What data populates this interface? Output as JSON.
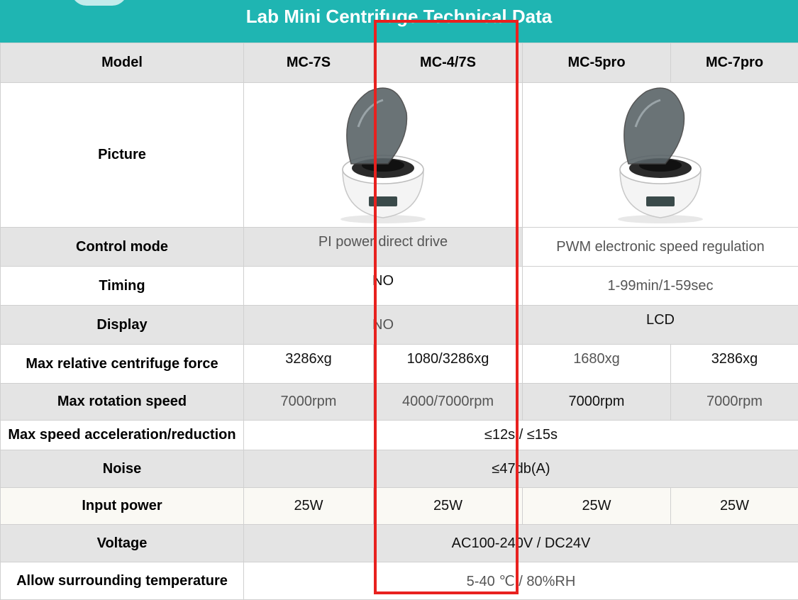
{
  "title": "Lab Mini Centrifuge Technical Data",
  "columns": {
    "model_label": "Model",
    "models": [
      "MC-7S",
      "MC-4/7S",
      "MC-5pro",
      "MC-7pro"
    ]
  },
  "rows": {
    "picture": {
      "label": "Picture"
    },
    "control_mode": {
      "label": "Control mode",
      "group1": "PI power direct drive",
      "group2": "PWM electronic speed regulation"
    },
    "timing": {
      "label": "Timing",
      "group1": "NO",
      "group2": "1-99min/1-59sec"
    },
    "display": {
      "label": "Display",
      "group1": "NO",
      "group2": "LCD"
    },
    "max_rcf": {
      "label": "Max relative centrifuge force",
      "values": [
        "3286xg",
        "1080/3286xg",
        "1680xg",
        "3286xg"
      ]
    },
    "max_speed": {
      "label": "Max rotation speed",
      "values": [
        "7000rpm",
        "4000/7000rpm",
        "7000rpm",
        "7000rpm"
      ]
    },
    "acceleration": {
      "label": "Max speed acceleration/reduction",
      "value": "≤12s / ≤15s"
    },
    "noise": {
      "label": "Noise",
      "value": "≤47db(A)"
    },
    "input_power": {
      "label": "Input power",
      "values": [
        "25W",
        "25W",
        "25W",
        "25W"
      ]
    },
    "voltage": {
      "label": "Voltage",
      "value": "AC100-240V / DC24V"
    },
    "temperature": {
      "label": "Allow surrounding temperature",
      "value": "5-40 ℃ / 80%RH"
    }
  },
  "colors": {
    "header_teal": "#1fb5b2",
    "row_gray": "#e4e4e4",
    "highlight_red": "#e8211f"
  }
}
